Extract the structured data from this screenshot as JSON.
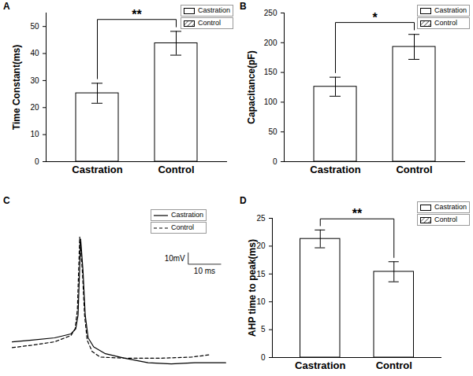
{
  "chart_data": [
    {
      "panel": "A",
      "type": "bar",
      "categories": [
        "Castration",
        "Control"
      ],
      "values": [
        25.3,
        43.8
      ],
      "errors": [
        3.7,
        4.4
      ],
      "colors": [
        "#ffffff",
        "#555555"
      ],
      "ylabel": "Time Constant(ms)",
      "ylim": [
        0,
        55
      ],
      "yticks": [
        0,
        10,
        20,
        30,
        40,
        50
      ],
      "legend": "upper right",
      "annotations": [
        {
          "text": "**",
          "between": [
            "Castration",
            "Control"
          ]
        }
      ]
    },
    {
      "panel": "B",
      "type": "bar",
      "categories": [
        "Castration",
        "Control"
      ],
      "values": [
        126,
        193
      ],
      "errors": [
        16,
        21
      ],
      "colors": [
        "#ffffff",
        "#555555"
      ],
      "ylabel": "Capacitance(pF)",
      "ylim": [
        0,
        250
      ],
      "yticks": [
        0,
        50,
        100,
        150,
        200,
        250
      ],
      "legend": "upper right",
      "annotations": [
        {
          "text": "*",
          "between": [
            "Castration",
            "Control"
          ]
        }
      ]
    },
    {
      "panel": "C",
      "type": "line",
      "xlim": [
        0,
        67
      ],
      "ylim": [
        -85,
        40
      ],
      "tick_labels": false,
      "legend": "upper right",
      "series": [
        {
          "name": "Castration",
          "color": "#000000",
          "line_style": "solid",
          "x": [
            0,
            6,
            13,
            18,
            19.5,
            20.2,
            21,
            21.7,
            22.4,
            23.3,
            25,
            28.6,
            34.5,
            41.7,
            48.8,
            56,
            65.5
          ],
          "values": [
            -63.6,
            -62,
            -60,
            -56.5,
            -52,
            -40,
            27,
            0,
            -40,
            -60,
            -68,
            -74,
            -78,
            -82,
            -83,
            -82,
            -82
          ]
        },
        {
          "name": "Control",
          "color": "#000000",
          "line_style": "dashed",
          "x": [
            0,
            6,
            13,
            18,
            19.3,
            20,
            20.7,
            21.5,
            22.2,
            23,
            24.5,
            27,
            35,
            45,
            55,
            60.5
          ],
          "values": [
            -68.6,
            -66.5,
            -63.5,
            -58,
            -52,
            -35,
            29,
            0,
            -40,
            -62,
            -72,
            -77,
            -78,
            -78,
            -77,
            -75
          ]
        }
      ],
      "scale_bar": {
        "x": 10,
        "y": 10,
        "x_label": "10 ms",
        "y_label": "10mV"
      }
    },
    {
      "panel": "D",
      "type": "bar",
      "categories": [
        "Castration",
        "Control"
      ],
      "values": [
        21.3,
        15.4
      ],
      "errors": [
        1.6,
        1.8
      ],
      "colors": [
        "#ffffff",
        "#555555"
      ],
      "ylabel": "AHP time to peak(ms)",
      "ylim": [
        0,
        25
      ],
      "yticks": [
        0,
        5,
        10,
        15,
        20,
        25
      ],
      "legend": "upper right",
      "annotations": [
        {
          "text": "**",
          "between": [
            "Castration",
            "Control"
          ]
        }
      ]
    }
  ]
}
